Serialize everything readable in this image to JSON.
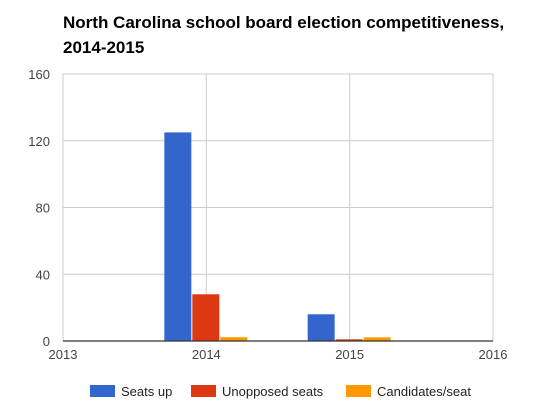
{
  "chart_data": {
    "type": "bar",
    "title": "North Carolina school board election competitiveness, 2014-2015",
    "xlabel": "",
    "ylabel": "",
    "x_ticks": [
      "2013",
      "2014",
      "2015",
      "2016"
    ],
    "xlim": [
      2013,
      2016
    ],
    "y_ticks": [
      "0",
      "40",
      "80",
      "120",
      "160"
    ],
    "ylim": [
      0,
      160
    ],
    "grid": true,
    "legend_position": "bottom",
    "categories": [
      "2014",
      "2015"
    ],
    "series": [
      {
        "name": "Seats up",
        "color": "#3366cc",
        "values": [
          125,
          16
        ]
      },
      {
        "name": "Unopposed seats",
        "color": "#dc3912",
        "values": [
          28,
          1
        ]
      },
      {
        "name": "Candidates/seat",
        "color": "#ff9900",
        "values": [
          2.3,
          2.2
        ]
      }
    ]
  }
}
